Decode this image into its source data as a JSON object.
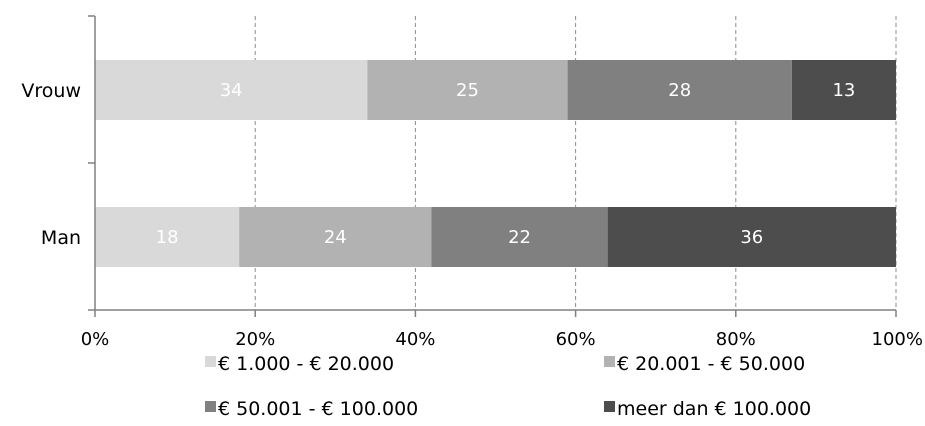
{
  "chart_data": {
    "type": "bar",
    "orientation": "horizontal",
    "stacked": true,
    "categories": [
      "Vrouw",
      "Man"
    ],
    "series": [
      {
        "name": "€ 1.000 - € 20.000",
        "values": [
          34,
          18
        ],
        "color": "#d9d9d9"
      },
      {
        "name": "€ 20.001 - € 50.000",
        "values": [
          25,
          24
        ],
        "color": "#b2b2b2"
      },
      {
        "name": "€ 50.001 - € 100.000",
        "values": [
          28,
          22
        ],
        "color": "#808080"
      },
      {
        "name": "meer dan € 100.000",
        "values": [
          13,
          36
        ],
        "color": "#4d4d4d"
      }
    ],
    "xticks": [
      "0%",
      "20%",
      "40%",
      "60%",
      "80%",
      "100%"
    ],
    "xlim": [
      0,
      100
    ],
    "grid": "vertical dashed",
    "legend_position": "bottom",
    "title": "",
    "xlabel": "",
    "ylabel": ""
  }
}
